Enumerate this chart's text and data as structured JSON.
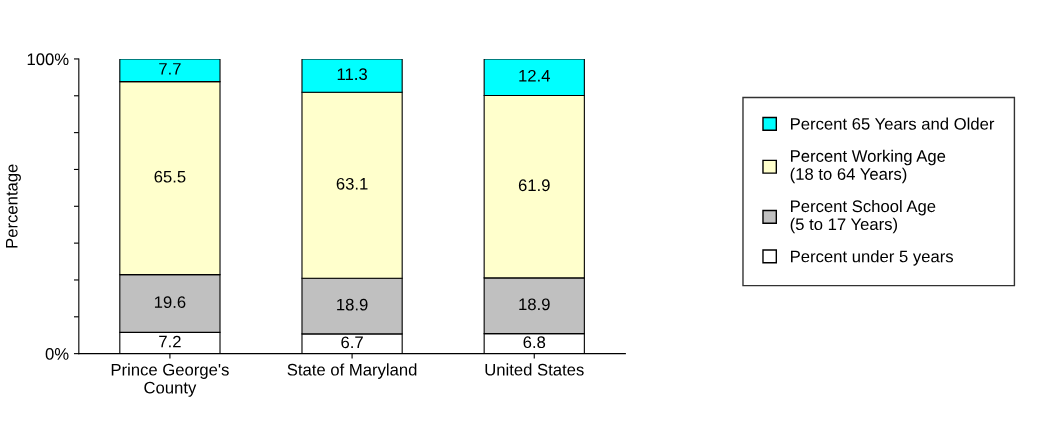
{
  "chart_data": {
    "type": "bar",
    "stacked": true,
    "ylabel": "Percentage",
    "categories": [
      "Prince George's\nCounty",
      "State of Maryland",
      "United States"
    ],
    "series": [
      {
        "name": "Percent under 5 years",
        "color": "#ffffff",
        "values": [
          7.2,
          6.7,
          6.8
        ]
      },
      {
        "name": "Percent School Age\n(5 to 17 Years)",
        "color": "#c0c0c0",
        "values": [
          19.6,
          18.9,
          18.9
        ]
      },
      {
        "name": "Percent Working Age\n(18 to 64 Years)",
        "color": "#ffffcc",
        "values": [
          65.5,
          63.1,
          61.9
        ]
      },
      {
        "name": "Percent 65 Years and Older",
        "color": "#00ffff",
        "values": [
          7.7,
          11.3,
          12.4
        ]
      }
    ],
    "ylim": [
      0,
      100
    ],
    "yticks": [
      {
        "value": 0,
        "label": "0%"
      },
      {
        "value": 12.5,
        "label": null
      },
      {
        "value": 25,
        "label": null
      },
      {
        "value": 37.5,
        "label": null
      },
      {
        "value": 50,
        "label": null
      },
      {
        "value": 62.5,
        "label": null
      },
      {
        "value": 75,
        "label": null
      },
      {
        "value": 87.5,
        "label": null
      },
      {
        "value": 100,
        "label": "100%"
      }
    ],
    "data_labels": true,
    "legend": "right",
    "grid": false
  }
}
